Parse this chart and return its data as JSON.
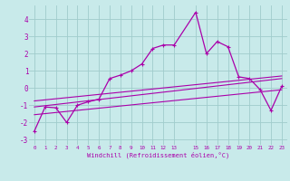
{
  "xlabel": "Windchill (Refroidissement éolien,°C)",
  "ylabel": "",
  "background_color": "#c8eaea",
  "grid_color": "#a0cccc",
  "line_color": "#aa00aa",
  "xlim": [
    -0.5,
    23.5
  ],
  "ylim": [
    -3.3,
    4.8
  ],
  "xtick_positions": [
    0,
    1,
    2,
    3,
    4,
    5,
    6,
    7,
    8,
    9,
    10,
    11,
    12,
    13,
    15,
    16,
    17,
    18,
    19,
    20,
    21,
    22,
    23
  ],
  "xtick_labels": [
    "0",
    "1",
    "2",
    "3",
    "4",
    "5",
    "6",
    "7",
    "8",
    "9",
    "10",
    "11",
    "12",
    "13",
    "15",
    "16",
    "17",
    "18",
    "19",
    "20",
    "21",
    "22",
    "23"
  ],
  "ytick_values": [
    -3,
    -2,
    -1,
    0,
    1,
    2,
    3,
    4
  ],
  "line1_x": [
    0,
    1,
    2,
    3,
    4,
    5,
    6,
    7,
    8,
    9,
    10,
    11,
    12,
    13,
    15,
    16,
    17,
    18,
    19,
    20,
    21,
    22,
    23
  ],
  "line1_y": [
    -2.5,
    -1.1,
    -1.15,
    -2.0,
    -1.0,
    -0.8,
    -0.65,
    0.55,
    0.75,
    1.0,
    1.4,
    2.3,
    2.5,
    2.5,
    4.4,
    2.0,
    2.7,
    2.4,
    0.65,
    0.55,
    -0.1,
    -1.3,
    0.1
  ],
  "line2_x": [
    0,
    23
  ],
  "line2_y": [
    -1.1,
    0.55
  ],
  "line3_x": [
    0,
    23
  ],
  "line3_y": [
    -0.75,
    0.7
  ],
  "line4_x": [
    0,
    23
  ],
  "line4_y": [
    -1.55,
    -0.1
  ]
}
